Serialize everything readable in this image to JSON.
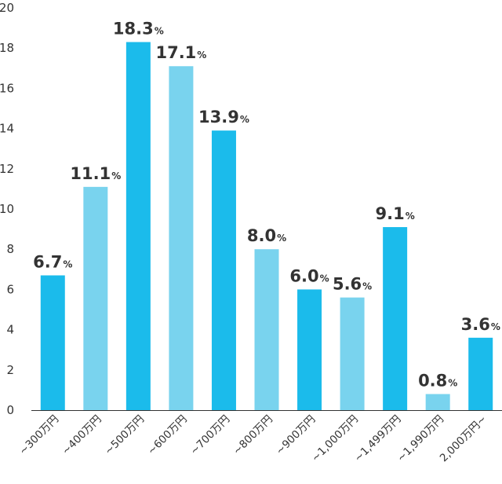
{
  "chart_data": {
    "type": "bar",
    "title": "",
    "xlabel": "",
    "ylabel": "",
    "ylim": [
      0,
      20
    ],
    "yticks": [
      "0",
      "2",
      "4",
      "6",
      "8",
      "10",
      "12",
      "14",
      "16",
      "18",
      "20"
    ],
    "grid": false,
    "unit": "%",
    "categories": [
      "~300万円",
      "~400万円",
      "~500万円",
      "~600万円",
      "~700万円",
      "~800万円",
      "~900万円",
      "~1,000万円",
      "~1,499万円",
      "~1,990万円",
      "2,000万円~"
    ],
    "values": [
      6.7,
      11.1,
      18.3,
      17.1,
      13.9,
      8.0,
      6.0,
      5.6,
      9.1,
      0.8,
      3.6
    ],
    "value_labels": [
      "6.7",
      "11.1",
      "18.3",
      "17.1",
      "13.9",
      "8.0",
      "6.0",
      "5.6",
      "9.1",
      "0.8",
      "3.6"
    ],
    "colors": {
      "dark": "#1bbbeb",
      "light": "#79d3ee",
      "axis": "#333333"
    },
    "bar_color_pattern": [
      "dark",
      "light",
      "dark",
      "light",
      "dark",
      "light",
      "dark",
      "light",
      "dark",
      "light",
      "dark"
    ]
  }
}
